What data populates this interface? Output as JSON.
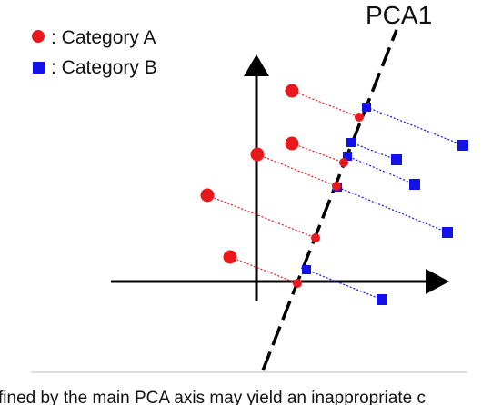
{
  "legend": {
    "items": [
      {
        "label": ": Category A",
        "color": "#e8191d",
        "shape": "circle"
      },
      {
        "label": ": Category B",
        "color": "#1212e8",
        "shape": "square"
      }
    ]
  },
  "axis_label": "PCA1",
  "caption": "fined by the main PCA axis may yield an inappropriate c",
  "colors": {
    "category_a": "#e8191d",
    "category_b": "#1212e8",
    "axes": "#000000",
    "separator": "#bbbbbb"
  }
}
